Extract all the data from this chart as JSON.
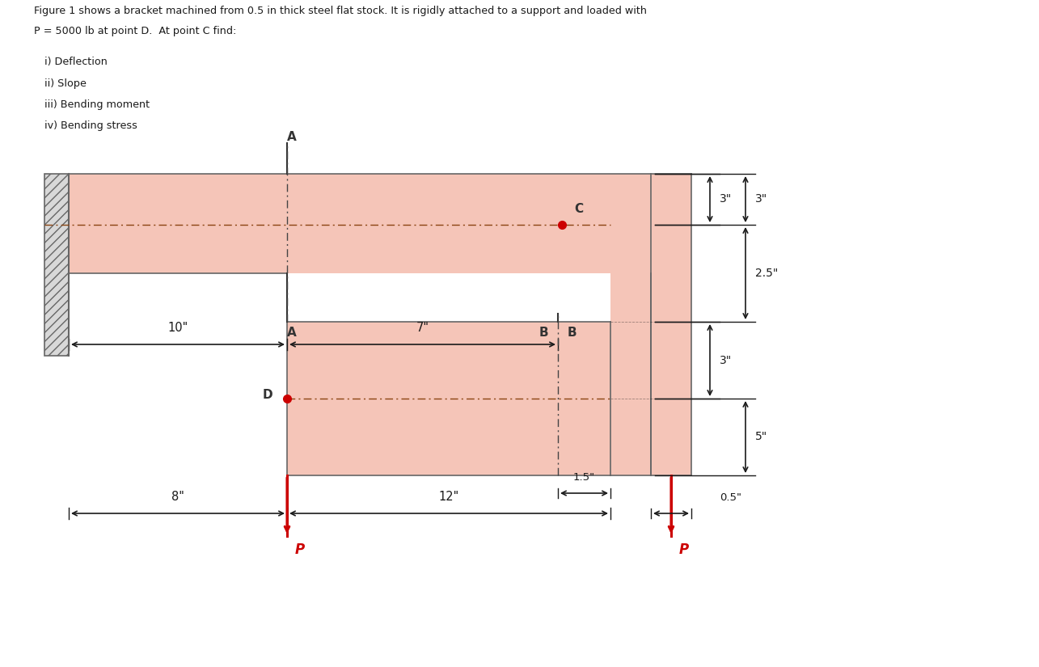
{
  "title_line1": "Figure 1 shows a bracket machined from 0.5 in thick steel flat stock. It is rigidly attached to a support and loaded with",
  "title_line2": "P = 5000 lb at point D.  At point C find:",
  "items": [
    "i) Deflection",
    "ii) Slope",
    "iii) Bending moment",
    "iv) Bending stress"
  ],
  "bracket_color": "#f5c5b8",
  "bracket_edge": "#666666",
  "centerline_color": "#8B4513",
  "dim_color": "#1a1a1a",
  "load_color": "#cc0000",
  "point_color": "#cc0000",
  "bg_color": "#ffffff",
  "text_color": "#1a1a1a"
}
